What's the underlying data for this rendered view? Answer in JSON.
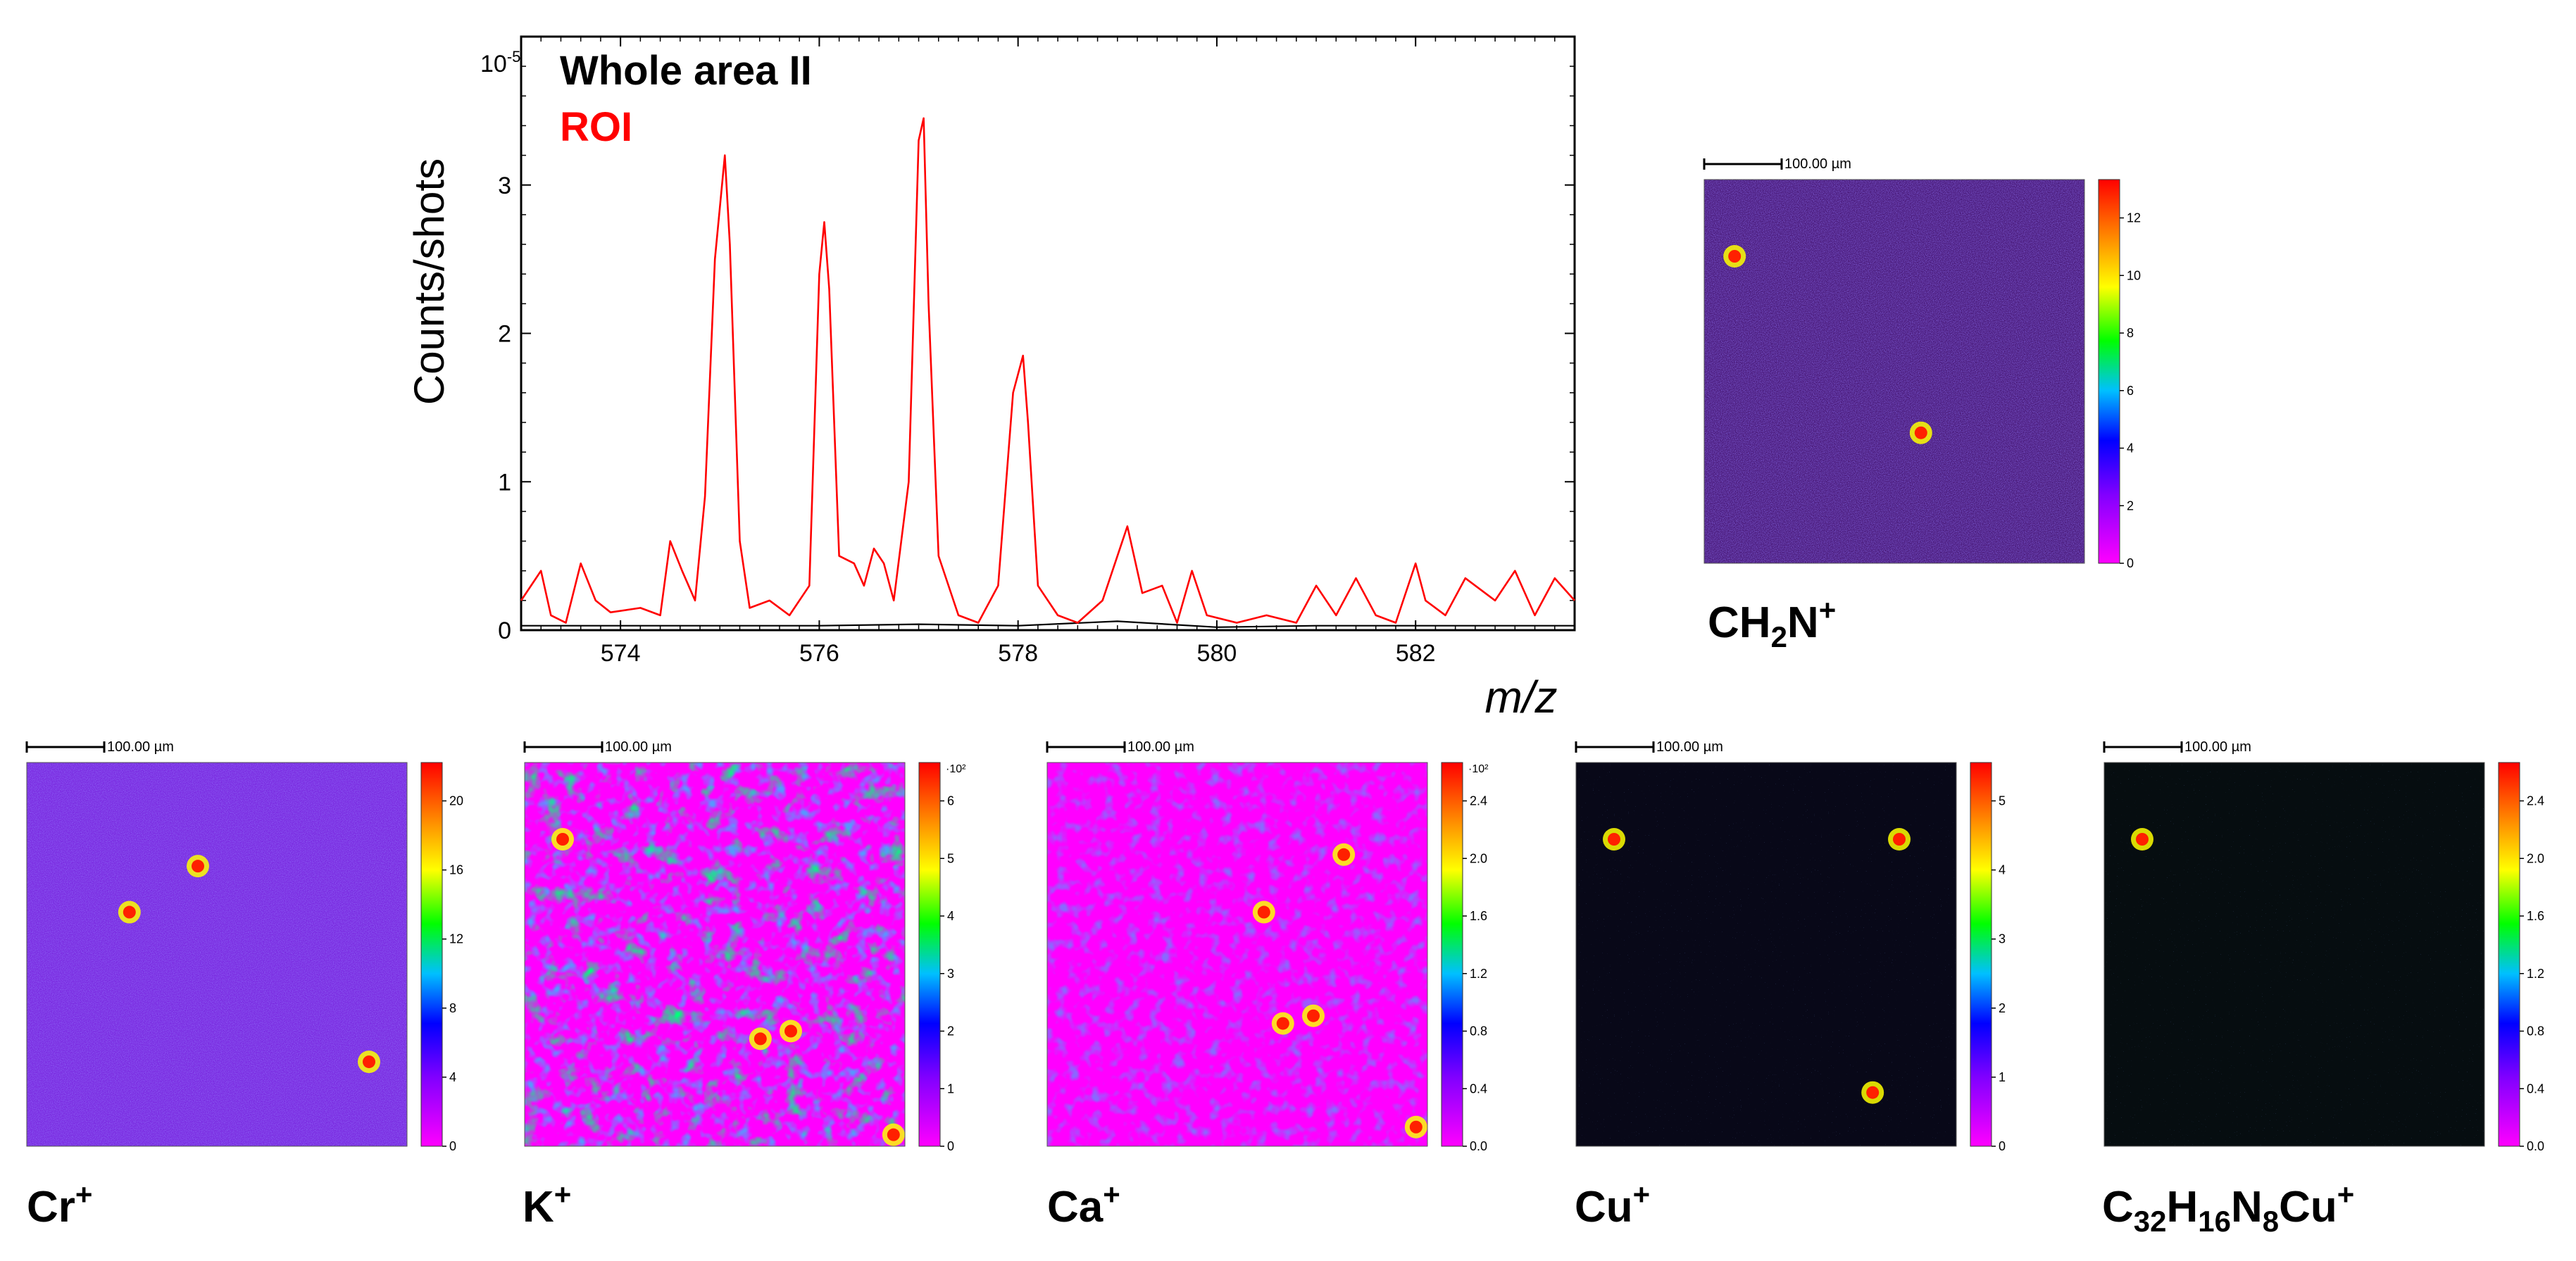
{
  "chart_data": [
    {
      "type": "line",
      "title": "",
      "xlabel": "m/z",
      "ylabel": "Counts/shots",
      "y_exponent_label": "10",
      "y_exponent_power": "-5",
      "xlim": [
        573.0,
        583.6
      ],
      "ylim": [
        0,
        4.0
      ],
      "x_ticks": [
        574,
        576,
        578,
        580,
        582
      ],
      "y_ticks": [
        0,
        1,
        2,
        3
      ],
      "legend": [
        "Whole area II",
        "ROI"
      ],
      "series": [
        {
          "name": "Whole area II",
          "color": "#000000",
          "x": [
            573.0,
            574.0,
            575.0,
            576.0,
            577.0,
            578.0,
            579.0,
            580.0,
            581.0,
            582.0,
            583.0,
            583.6
          ],
          "y": [
            0.03,
            0.03,
            0.03,
            0.03,
            0.04,
            0.03,
            0.06,
            0.02,
            0.03,
            0.03,
            0.03,
            0.03
          ]
        },
        {
          "name": "ROI",
          "color": "#ff0000",
          "x": [
            573.0,
            573.2,
            573.3,
            573.45,
            573.6,
            573.75,
            573.9,
            574.2,
            574.4,
            574.5,
            574.62,
            574.75,
            574.85,
            574.95,
            575.05,
            575.1,
            575.2,
            575.3,
            575.5,
            575.7,
            575.9,
            576.0,
            576.05,
            576.1,
            576.2,
            576.35,
            576.45,
            576.55,
            576.65,
            576.75,
            576.9,
            577.0,
            577.05,
            577.1,
            577.2,
            577.4,
            577.6,
            577.8,
            577.95,
            578.05,
            578.1,
            578.2,
            578.4,
            578.6,
            578.85,
            579.0,
            579.1,
            579.25,
            579.45,
            579.6,
            579.75,
            579.9,
            580.2,
            580.5,
            580.8,
            581.0,
            581.2,
            581.4,
            581.6,
            581.8,
            582.0,
            582.1,
            582.3,
            582.5,
            582.8,
            583.0,
            583.2,
            583.4,
            583.6
          ],
          "y": [
            0.2,
            0.4,
            0.1,
            0.05,
            0.45,
            0.2,
            0.12,
            0.15,
            0.1,
            0.6,
            0.4,
            0.2,
            0.9,
            2.5,
            3.2,
            2.6,
            0.6,
            0.15,
            0.2,
            0.1,
            0.3,
            2.4,
            2.75,
            2.3,
            0.5,
            0.45,
            0.3,
            0.55,
            0.45,
            0.2,
            1.0,
            3.3,
            3.45,
            2.2,
            0.5,
            0.1,
            0.05,
            0.3,
            1.6,
            1.85,
            1.4,
            0.3,
            0.1,
            0.05,
            0.2,
            0.5,
            0.7,
            0.25,
            0.3,
            0.05,
            0.4,
            0.1,
            0.05,
            0.1,
            0.05,
            0.3,
            0.1,
            0.35,
            0.1,
            0.05,
            0.45,
            0.2,
            0.1,
            0.35,
            0.2,
            0.4,
            0.1,
            0.35,
            0.2
          ]
        }
      ]
    },
    {
      "type": "heatmap",
      "title": "CH2N+",
      "scale_bar": "100.00 µm",
      "colorbar_ticks": [
        "0",
        "2",
        "4",
        "6",
        "8",
        "10",
        "12"
      ],
      "colorbar_multiplier": ""
    },
    {
      "type": "heatmap",
      "title": "Cr+",
      "scale_bar": "100.00 µm",
      "colorbar_ticks": [
        "0",
        "4",
        "8",
        "12",
        "16",
        "20"
      ],
      "colorbar_multiplier": ""
    },
    {
      "type": "heatmap",
      "title": "K+",
      "scale_bar": "100.00 µm",
      "colorbar_ticks": [
        "0",
        "1",
        "2",
        "3",
        "4",
        "5",
        "6"
      ],
      "colorbar_multiplier": "·10²"
    },
    {
      "type": "heatmap",
      "title": "Ca+",
      "scale_bar": "100.00 µm",
      "colorbar_ticks": [
        "0.0",
        "0.4",
        "0.8",
        "1.2",
        "1.6",
        "2.0",
        "2.4"
      ],
      "colorbar_multiplier": "·10²"
    },
    {
      "type": "heatmap",
      "title": "Cu+",
      "scale_bar": "100.00 µm",
      "colorbar_ticks": [
        "0",
        "1",
        "2",
        "3",
        "4",
        "5"
      ],
      "colorbar_multiplier": ""
    },
    {
      "type": "heatmap",
      "title": "C32H16N8Cu+",
      "scale_bar": "100.00 µm",
      "colorbar_ticks": [
        "0.0",
        "0.4",
        "0.8",
        "1.2",
        "1.6",
        "2.0",
        "2.4"
      ],
      "colorbar_multiplier": ""
    }
  ],
  "labels": {
    "ch2n": {
      "a": "CH",
      "b": "2",
      "c": "N",
      "d": "+"
    },
    "cr": {
      "a": "Cr",
      "d": "+"
    },
    "k": {
      "a": "K",
      "d": "+"
    },
    "ca": {
      "a": "Ca",
      "d": "+"
    },
    "cu": {
      "a": "Cu",
      "d": "+"
    },
    "cpc": {
      "a": "C",
      "b": "32",
      "c": "H",
      "e": "16",
      "f": "N",
      "g": "8",
      "h": "Cu",
      "d": "+"
    }
  },
  "colors": {
    "roi": "#ff0000",
    "whole": "#000000",
    "colorbar": [
      "#ff00ff",
      "#8000ff",
      "#0000ff",
      "#00c0ff",
      "#00ff00",
      "#ffff00",
      "#ff8000",
      "#ff0000"
    ]
  }
}
